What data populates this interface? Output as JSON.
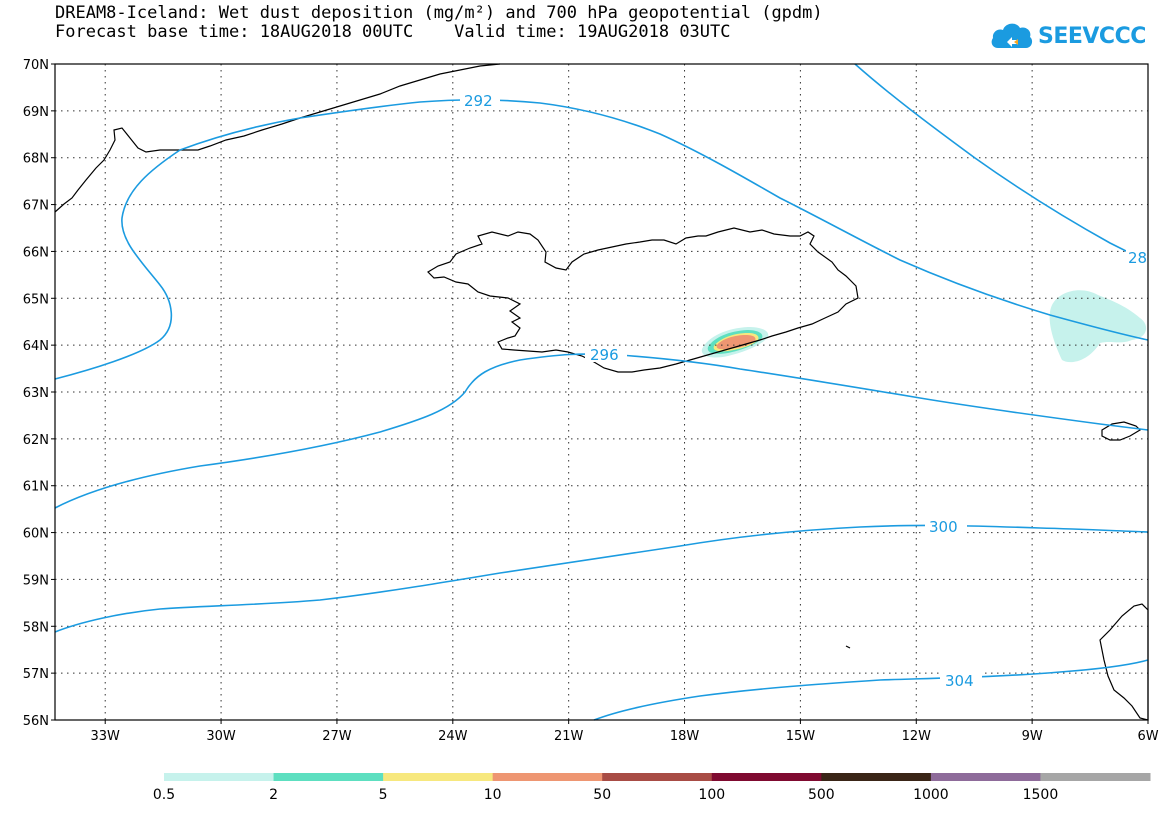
{
  "title": {
    "line1": "DREAM8-Iceland: Wet dust deposition (mg/m²) and 700 hPa geopotential (gpdm)",
    "line2": "Forecast base time: 18AUG2018 00UTC    Valid time: 19AUG2018 03UTC"
  },
  "logo": {
    "text": "SEEVCCC",
    "color": "#1b9be0"
  },
  "map": {
    "lat_range": [
      56,
      70
    ],
    "lon_range": [
      -34.3,
      -6
    ],
    "lat_labels": [
      "56N",
      "57N",
      "58N",
      "59N",
      "60N",
      "61N",
      "62N",
      "63N",
      "64N",
      "65N",
      "66N",
      "67N",
      "68N",
      "69N",
      "70N"
    ],
    "lon_labels": [
      "33W",
      "30W",
      "27W",
      "24W",
      "21W",
      "18W",
      "15W",
      "12W",
      "9W",
      "6W"
    ],
    "contour_color": "#1b9be0",
    "contour_labels": [
      "292",
      "296",
      "300",
      "304",
      "28"
    ]
  },
  "colorbar": {
    "labels": [
      "0.5",
      "2",
      "5",
      "10",
      "50",
      "100",
      "500",
      "1000",
      "1500"
    ],
    "colors": [
      "#c6f2ec",
      "#5ddfc0",
      "#f7e87e",
      "#ee9672",
      "#a84c45",
      "#7f0a30",
      "#3a2517",
      "#8e6b9a",
      "#a6a6a6"
    ]
  }
}
